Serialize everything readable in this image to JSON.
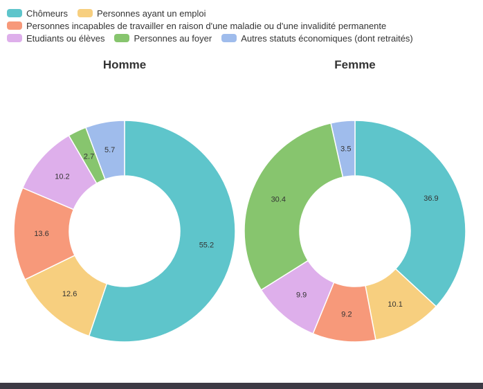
{
  "legend": [
    [
      {
        "label": "Chômeurs",
        "color": "#5ec5cb"
      },
      {
        "label": "Personnes ayant un emploi",
        "color": "#f7cf7f"
      }
    ],
    [
      {
        "label": "Personnes incapables de travailler en raison d'une maladie ou d'une invalidité permanente",
        "color": "#f7997a"
      }
    ],
    [
      {
        "label": "Etudiants ou élèves",
        "color": "#deafeb"
      },
      {
        "label": "Personnes au foyer",
        "color": "#87c56e"
      },
      {
        "label": "Autres statuts économiques (dont retraités)",
        "color": "#9fbcec"
      }
    ]
  ],
  "chart_data": [
    {
      "type": "pie",
      "title": "Homme",
      "donut": true,
      "categories": [
        "Chômeurs",
        "Personnes ayant un emploi",
        "Personnes incapables de travailler en raison d'une maladie ou d'une invalidité permanente",
        "Etudiants ou élèves",
        "Personnes au foyer",
        "Autres statuts économiques (dont retraités)"
      ],
      "values": [
        55.2,
        12.6,
        13.6,
        10.2,
        2.7,
        5.7
      ],
      "value_labels": [
        "55.2",
        "12.6",
        "13.6",
        "10.2",
        "2.7",
        "5.7"
      ],
      "colors": [
        "#5ec5cb",
        "#f7cf7f",
        "#f7997a",
        "#deafeb",
        "#87c56e",
        "#9fbcec"
      ]
    },
    {
      "type": "pie",
      "title": "Femme",
      "donut": true,
      "categories": [
        "Chômeurs",
        "Personnes ayant un emploi",
        "Personnes incapables de travailler en raison d'une maladie ou d'une invalidité permanente",
        "Etudiants ou élèves",
        "Personnes au foyer",
        "Autres statuts économiques (dont retraités)"
      ],
      "values": [
        36.9,
        10.1,
        9.2,
        9.9,
        30.4,
        3.5
      ],
      "value_labels": [
        "36.9",
        "10.1",
        "9.2",
        "9.9",
        "30.4",
        "3.5"
      ],
      "colors": [
        "#5ec5cb",
        "#f7cf7f",
        "#f7997a",
        "#deafeb",
        "#87c56e",
        "#9fbcec"
      ]
    }
  ]
}
